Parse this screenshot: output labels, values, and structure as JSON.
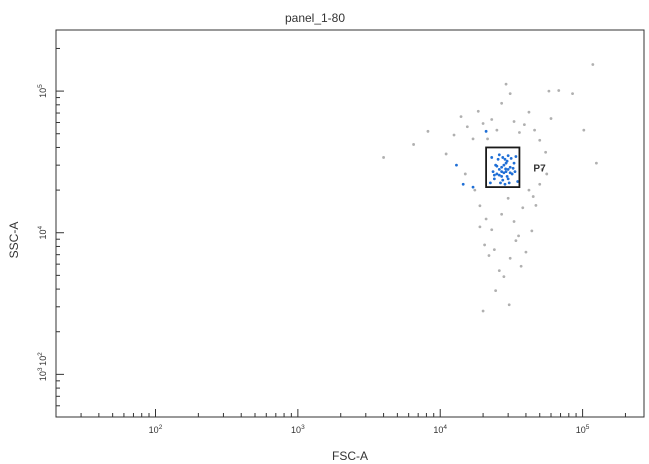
{
  "chart_data": {
    "type": "scatter",
    "title": "panel_1-80",
    "xlabel": "FSC-A",
    "ylabel": "SSC-A",
    "x_scale": "log",
    "y_scale": "log",
    "xlim": [
      20,
      270000
    ],
    "ylim": [
      500,
      270000
    ],
    "x_ticks": [
      {
        "base": "10",
        "exp": "2",
        "value": 100
      },
      {
        "base": "10",
        "exp": "3",
        "value": 1000
      },
      {
        "base": "10",
        "exp": "4",
        "value": 10000
      },
      {
        "base": "10",
        "exp": "5",
        "value": 100000
      }
    ],
    "y_ticks": [
      {
        "base": "10",
        "exp": "2",
        "value": 100
      },
      {
        "base": "10",
        "exp": "3",
        "value": 1000
      },
      {
        "base": "10",
        "exp": "4",
        "value": 10000
      },
      {
        "base": "10",
        "exp": "5",
        "value": 100000
      }
    ],
    "grid": false,
    "gate": {
      "name": "P7",
      "x_range": [
        21000,
        36000
      ],
      "y_range": [
        21000,
        40000
      ],
      "color": "#1a1a1a"
    },
    "series": [
      {
        "color": "#b0b0b0",
        "points": [
          [
            4000,
            34000
          ],
          [
            6500,
            42000
          ],
          [
            8200,
            52000
          ],
          [
            11000,
            36000
          ],
          [
            12500,
            49000
          ],
          [
            14000,
            66000
          ],
          [
            15500,
            56000
          ],
          [
            17000,
            46000
          ],
          [
            18500,
            72000
          ],
          [
            20000,
            59000
          ],
          [
            21500,
            46000
          ],
          [
            23000,
            63000
          ],
          [
            25000,
            53000
          ],
          [
            27000,
            82000
          ],
          [
            29000,
            112000
          ],
          [
            31000,
            96000
          ],
          [
            33000,
            61000
          ],
          [
            36000,
            51000
          ],
          [
            39000,
            58000
          ],
          [
            42000,
            71000
          ],
          [
            46000,
            53000
          ],
          [
            50000,
            45000
          ],
          [
            55000,
            37000
          ],
          [
            60000,
            64000
          ],
          [
            68000,
            101000
          ],
          [
            85000,
            96000
          ],
          [
            102000,
            53000
          ],
          [
            118000,
            154000
          ],
          [
            125000,
            31000
          ],
          [
            58000,
            100000
          ],
          [
            15000,
            26000
          ],
          [
            17500,
            20000
          ],
          [
            19000,
            15500
          ],
          [
            21000,
            12500
          ],
          [
            23000,
            10500
          ],
          [
            20500,
            8200
          ],
          [
            22000,
            6900
          ],
          [
            24000,
            7600
          ],
          [
            26000,
            5400
          ],
          [
            28000,
            4900
          ],
          [
            31000,
            6600
          ],
          [
            34000,
            8800
          ],
          [
            37000,
            5800
          ],
          [
            40000,
            7300
          ],
          [
            44000,
            10300
          ],
          [
            47000,
            15600
          ],
          [
            50000,
            22000
          ],
          [
            52000,
            28000
          ],
          [
            42000,
            20000
          ],
          [
            38000,
            15000
          ],
          [
            30000,
            17500
          ],
          [
            27000,
            13500
          ],
          [
            19000,
            11000
          ],
          [
            33000,
            12000
          ],
          [
            45000,
            18000
          ],
          [
            56000,
            26000
          ],
          [
            24500,
            3900
          ],
          [
            30500,
            3100
          ],
          [
            20000,
            2800
          ],
          [
            35500,
            9500
          ]
        ]
      },
      {
        "color": "#1f6fd6",
        "points": [
          [
            24000,
            24000
          ],
          [
            25000,
            26000
          ],
          [
            26000,
            28000
          ],
          [
            27000,
            25000
          ],
          [
            28000,
            30000
          ],
          [
            29000,
            27000
          ],
          [
            30000,
            24000
          ],
          [
            31000,
            29000
          ],
          [
            32000,
            26000
          ],
          [
            33000,
            31000
          ],
          [
            25500,
            33000
          ],
          [
            27500,
            34000
          ],
          [
            29500,
            32000
          ],
          [
            26500,
            22500
          ],
          [
            28500,
            22000
          ],
          [
            30500,
            22500
          ],
          [
            23500,
            27000
          ],
          [
            24500,
            30000
          ],
          [
            31500,
            33500
          ],
          [
            32500,
            28500
          ],
          [
            27000,
            29000
          ],
          [
            28000,
            26500
          ],
          [
            29000,
            31000
          ],
          [
            30000,
            28000
          ],
          [
            26000,
            25500
          ],
          [
            27500,
            23500
          ],
          [
            29500,
            25000
          ],
          [
            31000,
            26500
          ],
          [
            25000,
            29500
          ],
          [
            28500,
            33000
          ],
          [
            26000,
            35500
          ],
          [
            30000,
            35000
          ],
          [
            24000,
            25500
          ],
          [
            33500,
            27000
          ],
          [
            22500,
            22500
          ],
          [
            35000,
            23000
          ],
          [
            23000,
            34000
          ],
          [
            34000,
            34500
          ],
          [
            27000,
            27000
          ],
          [
            28800,
            28200
          ],
          [
            13000,
            30000
          ],
          [
            17000,
            21000
          ],
          [
            14500,
            22000
          ],
          [
            21000,
            52000
          ]
        ]
      }
    ]
  }
}
